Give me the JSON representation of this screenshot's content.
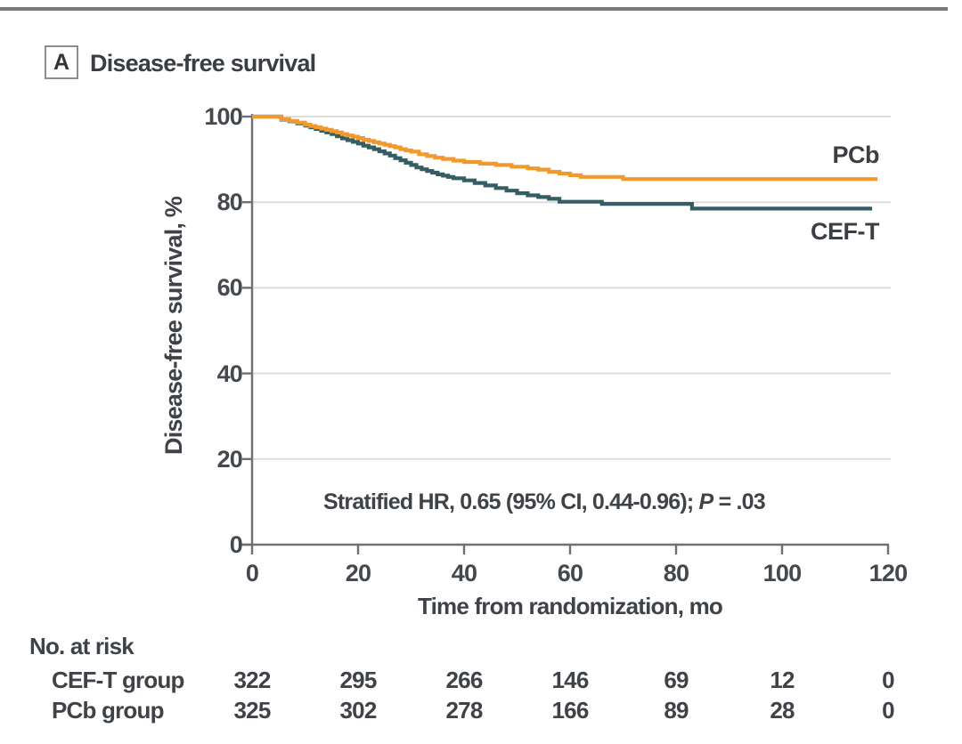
{
  "panel": {
    "label": "A",
    "title": "Disease-free survival"
  },
  "chart_data": {
    "type": "line",
    "subtype": "kaplan-meier-step",
    "title": "Disease-free survival",
    "xlabel": "Time from randomization, mo",
    "ylabel": "Disease-free survival, %",
    "xlim": [
      0,
      120
    ],
    "ylim": [
      0,
      100
    ],
    "xticks": [
      0,
      20,
      40,
      60,
      80,
      100,
      120
    ],
    "yticks": [
      0,
      20,
      40,
      60,
      80,
      100
    ],
    "grid": true,
    "legend_position": "right-of-curves",
    "annotation": "Stratified HR, 0.65 (95% CI, 0.44-0.96); P = .03",
    "series": [
      {
        "name": "PCb",
        "color": "#F2992E",
        "points": [
          [
            0,
            100
          ],
          [
            4.5,
            100
          ],
          [
            5.5,
            99.4
          ],
          [
            7,
            99.0
          ],
          [
            8.5,
            98.6
          ],
          [
            10,
            98.1
          ],
          [
            11,
            97.8
          ],
          [
            12,
            97.5
          ],
          [
            13,
            97.2
          ],
          [
            14,
            96.9
          ],
          [
            15,
            96.6
          ],
          [
            16,
            96.3
          ],
          [
            17,
            95.9
          ],
          [
            18,
            95.6
          ],
          [
            19,
            95.3
          ],
          [
            20,
            95.0
          ],
          [
            21,
            94.6
          ],
          [
            22,
            94.3
          ],
          [
            23,
            94.0
          ],
          [
            24,
            93.7
          ],
          [
            25,
            93.4
          ],
          [
            26,
            93.1
          ],
          [
            27,
            92.8
          ],
          [
            28,
            92.4
          ],
          [
            29,
            92.1
          ],
          [
            30,
            91.8
          ],
          [
            31.5,
            91.2
          ],
          [
            33,
            90.8
          ],
          [
            34.5,
            90.4
          ],
          [
            36,
            90.1
          ],
          [
            38,
            89.7
          ],
          [
            40,
            89.4
          ],
          [
            43,
            89.0
          ],
          [
            46,
            88.7
          ],
          [
            49,
            88.3
          ],
          [
            52,
            87.9
          ],
          [
            54,
            87.6
          ],
          [
            56,
            87.1
          ],
          [
            58,
            86.7
          ],
          [
            60,
            86.3
          ],
          [
            62,
            85.9
          ],
          [
            70,
            85.4
          ],
          [
            118,
            85.4
          ]
        ]
      },
      {
        "name": "CEF-T",
        "color": "#345D64",
        "points": [
          [
            0,
            100
          ],
          [
            4.5,
            100
          ],
          [
            5.5,
            99.3
          ],
          [
            7,
            98.9
          ],
          [
            8.5,
            98.4
          ],
          [
            10,
            97.9
          ],
          [
            11,
            97.5
          ],
          [
            12,
            97.1
          ],
          [
            13,
            96.7
          ],
          [
            14,
            96.3
          ],
          [
            15,
            95.9
          ],
          [
            16,
            95.4
          ],
          [
            17,
            94.9
          ],
          [
            18,
            94.5
          ],
          [
            19,
            94.1
          ],
          [
            20,
            93.7
          ],
          [
            21,
            93.2
          ],
          [
            22,
            92.8
          ],
          [
            23,
            92.4
          ],
          [
            24,
            91.9
          ],
          [
            25,
            91.4
          ],
          [
            26,
            90.9
          ],
          [
            27,
            90.3
          ],
          [
            28,
            89.8
          ],
          [
            29,
            89.2
          ],
          [
            30,
            88.7
          ],
          [
            31,
            88.1
          ],
          [
            32,
            87.7
          ],
          [
            33,
            87.3
          ],
          [
            34,
            86.9
          ],
          [
            35,
            86.5
          ],
          [
            36,
            86.2
          ],
          [
            37,
            85.9
          ],
          [
            38,
            85.6
          ],
          [
            40,
            85.1
          ],
          [
            42,
            84.5
          ],
          [
            44,
            83.9
          ],
          [
            46,
            83.3
          ],
          [
            48,
            82.7
          ],
          [
            50,
            82.1
          ],
          [
            52,
            81.6
          ],
          [
            54,
            81.2
          ],
          [
            56,
            80.8
          ],
          [
            58,
            80.1
          ],
          [
            66,
            79.6
          ],
          [
            83,
            78.5
          ],
          [
            117,
            78.5
          ]
        ]
      }
    ]
  },
  "annotation": {
    "hr_text": "Stratified HR, 0.65 (95% CI, 0.44-0.96); ",
    "p_symbol": "P",
    "p_value": " = .03"
  },
  "risk_table": {
    "header": "No. at risk",
    "time_points": [
      0,
      20,
      40,
      60,
      80,
      100,
      120
    ],
    "rows": [
      {
        "label": "CEF-T group",
        "values": [
          322,
          295,
          266,
          146,
          69,
          12,
          0
        ]
      },
      {
        "label": "PCb group",
        "values": [
          325,
          302,
          278,
          166,
          89,
          28,
          0
        ]
      }
    ]
  },
  "colors": {
    "axis": "#6e7173",
    "grid": "#dddddd",
    "text": "#3f4347",
    "top_rule": "#77797b",
    "pcb_curve": "#F2992E",
    "ceft_curve": "#345D64"
  }
}
